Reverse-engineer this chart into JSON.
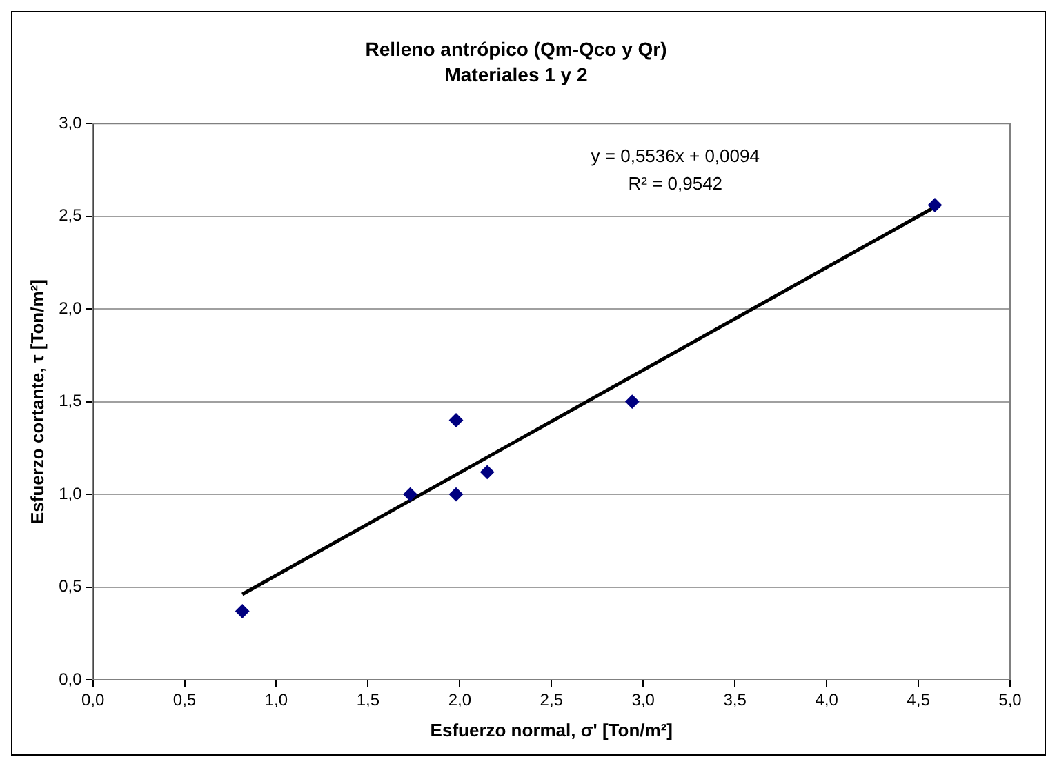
{
  "chart_data": {
    "type": "scatter",
    "title": "Relleno antrópico (Qm-Qco y Qr)",
    "subtitle": "Materiales 1 y 2",
    "xlabel": "Esfuerzo normal, σ' [Ton/m²]",
    "ylabel": "Esfuerzo cortante, τ [Ton/m²]",
    "series": [
      {
        "color": "#000080",
        "marker": "diamond",
        "x": [
          0.815,
          1.73,
          1.98,
          1.98,
          2.15,
          2.94,
          4.59
        ],
        "values": [
          0.37,
          1.0,
          1.4,
          1.0,
          1.12,
          1.5,
          2.56
        ]
      },
      {
        "type": "line",
        "color": "#000000",
        "marker": "none",
        "line_style": "solid",
        "x": [
          0.815,
          4.59
        ],
        "values": [
          0.461,
          2.55
        ]
      }
    ],
    "annotations": [
      "y = 0,5536x + 0,0094",
      "R² = 0,9542"
    ],
    "xlim": [
      0,
      5
    ],
    "ylim": [
      0,
      3
    ],
    "xticks": [
      {
        "value": 0,
        "label": "0,0"
      },
      {
        "value": 0.5,
        "label": "0,5"
      },
      {
        "value": 1,
        "label": "1,0"
      },
      {
        "value": 1.5,
        "label": "1,5"
      },
      {
        "value": 2,
        "label": "2,0"
      },
      {
        "value": 2.5,
        "label": "2,5"
      },
      {
        "value": 3,
        "label": "3,0"
      },
      {
        "value": 3.5,
        "label": "3,5"
      },
      {
        "value": 4,
        "label": "4,0"
      },
      {
        "value": 4.5,
        "label": "4,5"
      },
      {
        "value": 5,
        "label": "5,0"
      }
    ],
    "yticks": [
      {
        "value": 0,
        "label": "0,0"
      },
      {
        "value": 0.5,
        "label": "0,5"
      },
      {
        "value": 1,
        "label": "1,0"
      },
      {
        "value": 1.5,
        "label": "1,5"
      },
      {
        "value": 2,
        "label": "2,0"
      },
      {
        "value": 2.5,
        "label": "2,5"
      },
      {
        "value": 3,
        "label": "3,0"
      }
    ],
    "grid": "y",
    "legend": false
  }
}
